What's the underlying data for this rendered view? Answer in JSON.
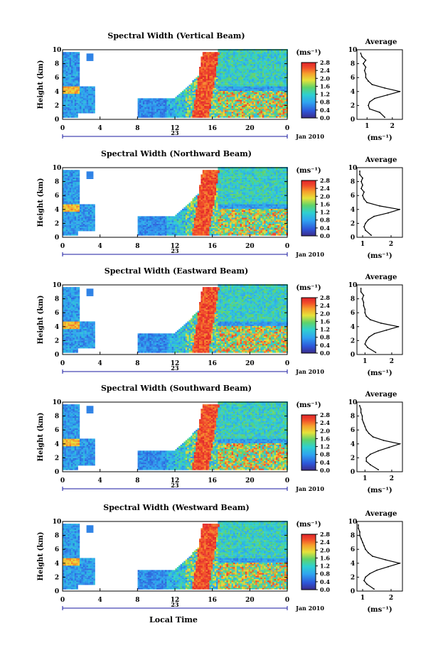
{
  "figure": {
    "time_label": "Local Time",
    "date_label": "Jan 2010",
    "day_label": "23",
    "unit_label": "(ms⁻¹)",
    "avg_title": "Average",
    "avg_xlabel": "(ms⁻¹)"
  },
  "chart_data": [
    {
      "type": "heatmap",
      "title": "Spectral Width (Vertical Beam)",
      "ylabel": "Height (km)",
      "xlabel": "Local Time",
      "x_ticks": [
        "0",
        "4",
        "8",
        "12",
        "16",
        "20",
        "0"
      ],
      "y_ticks": [
        "0",
        "2",
        "4",
        "6",
        "8",
        "10"
      ],
      "ylim": [
        0,
        10
      ],
      "colorbar": {
        "ticks": [
          "0.0",
          "0.4",
          "0.8",
          "1.2",
          "1.6",
          "2.0",
          "2.4",
          "2.8"
        ],
        "range": [
          0,
          2.8
        ]
      },
      "average": {
        "title": "Average",
        "xlabel": "(ms⁻¹)",
        "x_ticks": [
          "1",
          "2"
        ],
        "xlim": [
          0.6,
          2.4
        ],
        "heights": [
          0.3,
          1,
          1.5,
          2,
          2.5,
          3,
          3.5,
          4,
          4.5,
          5,
          5.5,
          6,
          6.5,
          7,
          7.5,
          8,
          8.5,
          9,
          9.5
        ],
        "values": [
          1.7,
          1.5,
          1.1,
          1.05,
          1.1,
          1.3,
          1.8,
          2.3,
          1.7,
          1.2,
          1.05,
          0.95,
          0.95,
          0.9,
          0.95,
          0.85,
          0.95,
          0.8,
          0.75
        ]
      }
    },
    {
      "type": "heatmap",
      "title": "Spectral Width (Northward Beam)",
      "ylabel": "Height (km)",
      "xlabel": "Local Time",
      "x_ticks": [
        "0",
        "4",
        "8",
        "12",
        "16",
        "20",
        "0"
      ],
      "y_ticks": [
        "0",
        "2",
        "4",
        "6",
        "8",
        "10"
      ],
      "ylim": [
        0,
        10
      ],
      "colorbar": {
        "ticks": [
          "0.0",
          "0.4",
          "0.8",
          "1.2",
          "1.6",
          "2.0",
          "2.4",
          "2.8"
        ],
        "range": [
          0,
          2.8
        ]
      },
      "average": {
        "title": "Average",
        "xlabel": "(ms⁻¹)",
        "x_ticks": [
          "1",
          "2"
        ],
        "xlim": [
          0.8,
          2.4
        ],
        "heights": [
          0.3,
          1,
          1.5,
          2,
          2.5,
          3,
          3.5,
          4,
          4.5,
          5,
          5.5,
          6,
          6.5,
          7,
          7.5,
          8,
          8.5,
          9,
          9.5
        ],
        "values": [
          1.3,
          1.1,
          1.05,
          1.1,
          1.2,
          1.4,
          1.9,
          2.3,
          1.6,
          1.15,
          1.05,
          1.0,
          1.05,
          0.95,
          1.0,
          0.95,
          1.0,
          0.9,
          0.9
        ]
      }
    },
    {
      "type": "heatmap",
      "title": "Spectral Width (Eastward Beam)",
      "ylabel": "Height (km)",
      "xlabel": "Local Time",
      "x_ticks": [
        "0",
        "4",
        "8",
        "12",
        "16",
        "20",
        "0"
      ],
      "y_ticks": [
        "0",
        "2",
        "4",
        "6",
        "8",
        "10"
      ],
      "ylim": [
        0,
        10
      ],
      "colorbar": {
        "ticks": [
          "0.0",
          "0.4",
          "0.8",
          "1.2",
          "1.6",
          "2.0",
          "2.4",
          "2.8"
        ],
        "range": [
          0,
          2.8
        ]
      },
      "average": {
        "title": "Average",
        "xlabel": "(ms⁻¹)",
        "x_ticks": [
          "1",
          "2"
        ],
        "xlim": [
          0.7,
          2.4
        ],
        "heights": [
          0.3,
          1,
          1.5,
          2,
          2.5,
          3,
          3.5,
          4,
          4.5,
          5,
          5.5,
          6,
          6.5,
          7,
          7.5,
          8,
          8.5,
          9,
          9.5
        ],
        "values": [
          1.4,
          1.1,
          1.0,
          1.05,
          1.15,
          1.35,
          1.8,
          2.25,
          1.6,
          1.2,
          1.05,
          1.0,
          1.0,
          0.95,
          0.95,
          0.9,
          0.95,
          0.85,
          0.85
        ]
      }
    },
    {
      "type": "heatmap",
      "title": "Spectral Width (Southward Beam)",
      "ylabel": "Height (km)",
      "xlabel": "Local Time",
      "x_ticks": [
        "0",
        "4",
        "8",
        "12",
        "16",
        "20",
        "0"
      ],
      "y_ticks": [
        "0",
        "2",
        "4",
        "6",
        "8",
        "10"
      ],
      "ylim": [
        0,
        10
      ],
      "colorbar": {
        "ticks": [
          "0.0",
          "0.4",
          "0.8",
          "1.2",
          "1.6",
          "2.0",
          "2.4",
          "2.8"
        ],
        "range": [
          0,
          2.8
        ]
      },
      "average": {
        "title": "Average",
        "xlabel": "(ms⁻¹)",
        "x_ticks": [
          "1",
          "2"
        ],
        "xlim": [
          0.7,
          2.4
        ],
        "heights": [
          0.3,
          1,
          1.5,
          2,
          2.5,
          3,
          3.5,
          4,
          4.5,
          5,
          5.5,
          6,
          6.5,
          7,
          7.5,
          8,
          8.5,
          9,
          9.5
        ],
        "values": [
          1.5,
          1.2,
          1.05,
          1.05,
          1.2,
          1.5,
          1.9,
          2.3,
          1.7,
          1.3,
          1.15,
          1.05,
          1.0,
          0.95,
          0.9,
          0.9,
          0.85,
          0.85,
          0.8
        ]
      }
    },
    {
      "type": "heatmap",
      "title": "Spectral Width (Westward Beam)",
      "ylabel": "Height (km)",
      "xlabel": "Local Time",
      "x_ticks": [
        "0",
        "4",
        "8",
        "12",
        "16",
        "20",
        "0"
      ],
      "y_ticks": [
        "0",
        "2",
        "4",
        "6",
        "8",
        "10"
      ],
      "ylim": [
        0,
        10
      ],
      "colorbar": {
        "ticks": [
          "0.0",
          "0.4",
          "0.8",
          "1.2",
          "1.6",
          "2.0",
          "2.4",
          "2.8"
        ],
        "range": [
          0,
          2.8
        ]
      },
      "average": {
        "title": "Average",
        "xlabel": "(ms⁻¹)",
        "x_ticks": [
          "1",
          "2"
        ],
        "xlim": [
          0.8,
          2.4
        ],
        "heights": [
          0.3,
          1,
          1.5,
          2,
          2.5,
          3,
          3.5,
          4,
          4.5,
          5,
          5.5,
          6,
          6.5,
          7,
          7.5,
          8,
          8.5,
          9,
          9.5
        ],
        "values": [
          1.4,
          1.15,
          1.05,
          1.1,
          1.25,
          1.5,
          1.9,
          2.3,
          1.8,
          1.35,
          1.2,
          1.1,
          1.05,
          1.0,
          0.95,
          0.9,
          0.9,
          0.85,
          0.85
        ]
      }
    }
  ]
}
